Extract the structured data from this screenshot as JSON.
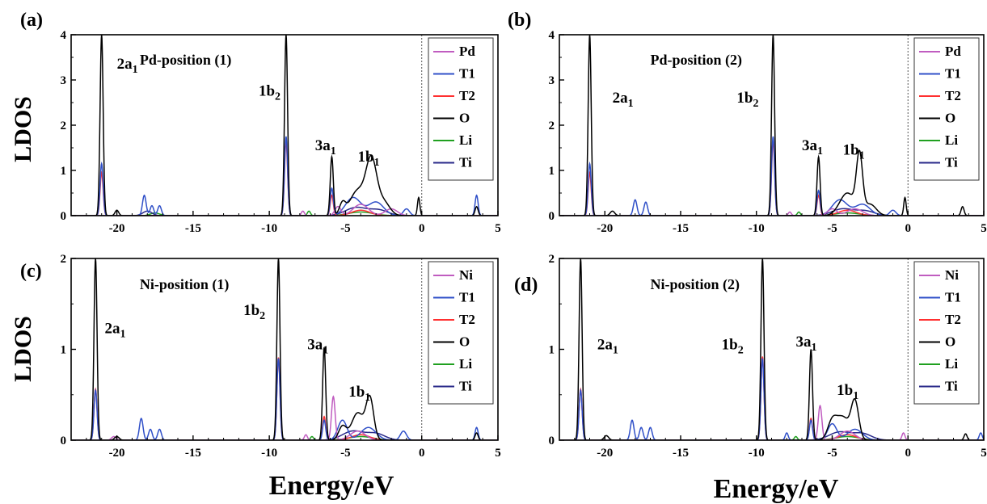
{
  "figure": {
    "ylabel": "LDOS",
    "xlabel": "Energy/eV"
  },
  "colors": {
    "Pd": "#c05cc0",
    "Ni": "#c05cc0",
    "T1": "#3050c8",
    "T2": "#ff3030",
    "O": "#000000",
    "Li": "#20a020",
    "Ti": "#2a2a8a"
  },
  "chart_data": [
    {
      "type": "line",
      "panel": "(a)",
      "title": "Pd-position (1)",
      "xlim": [
        -23,
        5
      ],
      "ylim": [
        0,
        4
      ],
      "xticks": [
        -20,
        -15,
        -10,
        -5,
        0,
        5
      ],
      "yticks": [
        0,
        1,
        2,
        3,
        4
      ],
      "fermi_level": 0,
      "legend": [
        "Pd",
        "T1",
        "T2",
        "O",
        "Li",
        "Ti"
      ],
      "peak_labels": [
        {
          "text": "2a",
          "sub": "1",
          "x": -20.0,
          "y": 3.25
        },
        {
          "text": "1b",
          "sub": "2",
          "x": -10.7,
          "y": 2.65
        },
        {
          "text": "3a",
          "sub": "1",
          "x": -7.0,
          "y": 1.45
        },
        {
          "text": "1b",
          "sub": "1",
          "x": -4.2,
          "y": 1.2
        }
      ],
      "series": [
        {
          "name": "O",
          "peaks": [
            [
              -21.0,
              4.0,
              0.1
            ],
            [
              -8.9,
              4.0,
              0.1
            ],
            [
              -5.9,
              1.3,
              0.1
            ],
            [
              -3.3,
              1.18,
              0.35
            ],
            [
              -4.2,
              0.55,
              0.5
            ],
            [
              -2.5,
              0.3,
              0.4
            ],
            [
              -5.2,
              0.25,
              0.2
            ],
            [
              -0.2,
              0.4,
              0.08
            ],
            [
              3.6,
              0.2,
              0.1
            ],
            [
              -20.0,
              0.12,
              0.12
            ]
          ]
        },
        {
          "name": "T1",
          "peaks": [
            [
              -21.0,
              1.15,
              0.1
            ],
            [
              -8.9,
              1.75,
              0.1
            ],
            [
              -5.9,
              0.6,
              0.1
            ],
            [
              -18.2,
              0.45,
              0.12
            ],
            [
              -17.7,
              0.22,
              0.12
            ],
            [
              -17.2,
              0.22,
              0.12
            ],
            [
              -4.5,
              0.4,
              0.5
            ],
            [
              -3.0,
              0.3,
              0.5
            ],
            [
              3.6,
              0.45,
              0.1
            ],
            [
              -1.0,
              0.15,
              0.2
            ]
          ]
        },
        {
          "name": "T2",
          "peaks": [
            [
              -21.0,
              0.95,
              0.1
            ],
            [
              -8.9,
              1.65,
              0.1
            ],
            [
              -5.9,
              0.45,
              0.1
            ],
            [
              -4.0,
              0.12,
              0.6
            ]
          ]
        },
        {
          "name": "Pd",
          "peaks": [
            [
              -7.8,
              0.1,
              0.1
            ],
            [
              -5.5,
              0.2,
              0.2
            ],
            [
              -4.0,
              0.25,
              0.5
            ],
            [
              -2.0,
              0.15,
              0.4
            ]
          ]
        },
        {
          "name": "Li",
          "peaks": [
            [
              -7.4,
              0.1,
              0.1
            ],
            [
              -17.5,
              0.06,
              0.3
            ],
            [
              -4.0,
              0.08,
              0.8
            ]
          ]
        },
        {
          "name": "Ti",
          "peaks": [
            [
              -4.3,
              0.18,
              0.7
            ],
            [
              -2.8,
              0.12,
              0.6
            ],
            [
              -18.0,
              0.1,
              0.3
            ]
          ]
        }
      ]
    },
    {
      "type": "line",
      "panel": "(b)",
      "title": "Pd-position (2)",
      "xlim": [
        -23,
        5
      ],
      "ylim": [
        0,
        4
      ],
      "xticks": [
        -20,
        -15,
        -10,
        -5,
        0,
        5
      ],
      "yticks": [
        0,
        1,
        2,
        3,
        4
      ],
      "fermi_level": 0,
      "legend": [
        "Pd",
        "T1",
        "T2",
        "O",
        "Li",
        "Ti"
      ],
      "peak_labels": [
        {
          "text": "2a",
          "sub": "1",
          "x": -19.5,
          "y": 2.5
        },
        {
          "text": "1b",
          "sub": "2",
          "x": -11.3,
          "y": 2.5
        },
        {
          "text": "3a",
          "sub": "1",
          "x": -7.0,
          "y": 1.45
        },
        {
          "text": "1b",
          "sub": "1",
          "x": -4.3,
          "y": 1.35
        }
      ],
      "series": [
        {
          "name": "O",
          "peaks": [
            [
              -21.0,
              4.0,
              0.1
            ],
            [
              -8.9,
              4.0,
              0.1
            ],
            [
              -5.9,
              1.3,
              0.1
            ],
            [
              -3.2,
              1.25,
              0.2
            ],
            [
              -4.0,
              0.5,
              0.5
            ],
            [
              -2.5,
              0.25,
              0.4
            ],
            [
              -0.2,
              0.4,
              0.08
            ],
            [
              3.6,
              0.2,
              0.1
            ],
            [
              -19.5,
              0.1,
              0.15
            ]
          ]
        },
        {
          "name": "T1",
          "peaks": [
            [
              -21.0,
              1.15,
              0.1
            ],
            [
              -8.9,
              1.75,
              0.1
            ],
            [
              -5.9,
              0.55,
              0.1
            ],
            [
              -18.0,
              0.35,
              0.12
            ],
            [
              -17.3,
              0.3,
              0.12
            ],
            [
              -4.5,
              0.35,
              0.5
            ],
            [
              -3.0,
              0.25,
              0.5
            ],
            [
              -1.0,
              0.12,
              0.2
            ]
          ]
        },
        {
          "name": "T2",
          "peaks": [
            [
              -21.0,
              0.95,
              0.1
            ],
            [
              -8.9,
              1.65,
              0.1
            ],
            [
              -5.9,
              0.45,
              0.1
            ],
            [
              -4.0,
              0.12,
              0.6
            ]
          ]
        },
        {
          "name": "Pd",
          "peaks": [
            [
              -7.8,
              0.08,
              0.1
            ],
            [
              -5.0,
              0.15,
              0.3
            ],
            [
              -3.5,
              0.15,
              0.5
            ]
          ]
        },
        {
          "name": "Li",
          "peaks": [
            [
              -7.2,
              0.08,
              0.1
            ],
            [
              -4.0,
              0.06,
              0.8
            ]
          ]
        },
        {
          "name": "Ti",
          "peaks": [
            [
              -4.3,
              0.15,
              0.7
            ],
            [
              -2.8,
              0.1,
              0.6
            ]
          ]
        }
      ]
    },
    {
      "type": "line",
      "panel": "(c)",
      "title": "Ni-position (1)",
      "xlim": [
        -23,
        5
      ],
      "ylim": [
        0,
        2
      ],
      "xticks": [
        -20,
        -15,
        -10,
        -5,
        0,
        5
      ],
      "yticks": [
        0,
        1,
        2
      ],
      "fermi_level": 0,
      "legend": [
        "Ni",
        "T1",
        "T2",
        "O",
        "Li",
        "Ti"
      ],
      "peak_labels": [
        {
          "text": "2a",
          "sub": "1",
          "x": -20.8,
          "y": 1.18
        },
        {
          "text": "1b",
          "sub": "2",
          "x": -11.7,
          "y": 1.38
        },
        {
          "text": "3a",
          "sub": "1",
          "x": -7.5,
          "y": 1.0
        },
        {
          "text": "1b",
          "sub": "1",
          "x": -4.8,
          "y": 0.48
        }
      ],
      "series": [
        {
          "name": "O",
          "peaks": [
            [
              -21.4,
              2.0,
              0.1
            ],
            [
              -9.4,
              2.0,
              0.1
            ],
            [
              -6.4,
              1.02,
              0.1
            ],
            [
              -3.4,
              0.45,
              0.25
            ],
            [
              -4.2,
              0.3,
              0.4
            ],
            [
              -5.2,
              0.15,
              0.25
            ],
            [
              3.6,
              0.08,
              0.1
            ],
            [
              -20.0,
              0.04,
              0.15
            ]
          ]
        },
        {
          "name": "T1",
          "peaks": [
            [
              -21.4,
              0.55,
              0.1
            ],
            [
              -9.4,
              0.9,
              0.1
            ],
            [
              -6.4,
              0.22,
              0.1
            ],
            [
              -18.4,
              0.24,
              0.12
            ],
            [
              -17.8,
              0.12,
              0.12
            ],
            [
              -17.2,
              0.12,
              0.12
            ],
            [
              -5.2,
              0.22,
              0.3
            ],
            [
              -3.5,
              0.14,
              0.5
            ],
            [
              3.6,
              0.14,
              0.1
            ],
            [
              -1.2,
              0.1,
              0.2
            ]
          ]
        },
        {
          "name": "T2",
          "peaks": [
            [
              -21.4,
              0.56,
              0.1
            ],
            [
              -9.4,
              0.91,
              0.1
            ],
            [
              -6.4,
              0.26,
              0.1
            ],
            [
              -4.0,
              0.06,
              0.6
            ]
          ]
        },
        {
          "name": "Ni",
          "peaks": [
            [
              -7.6,
              0.06,
              0.1
            ],
            [
              -5.8,
              0.48,
              0.12
            ],
            [
              -4.2,
              0.1,
              0.5
            ],
            [
              -20.2,
              0.04,
              0.15
            ]
          ]
        },
        {
          "name": "Li",
          "peaks": [
            [
              -7.2,
              0.04,
              0.1
            ],
            [
              -4.0,
              0.04,
              0.8
            ]
          ]
        },
        {
          "name": "Ti",
          "peaks": [
            [
              -4.5,
              0.1,
              0.7
            ],
            [
              -3.0,
              0.07,
              0.6
            ]
          ]
        }
      ]
    },
    {
      "type": "line",
      "panel": "(d)",
      "title": "Ni-position (2)",
      "xlim": [
        -23,
        5
      ],
      "ylim": [
        0,
        2
      ],
      "xticks": [
        -20,
        -15,
        -10,
        -5,
        0,
        5
      ],
      "yticks": [
        0,
        1,
        2
      ],
      "fermi_level": 0,
      "legend": [
        "Ni",
        "T1",
        "T2",
        "O",
        "Li",
        "Ti"
      ],
      "peak_labels": [
        {
          "text": "2a",
          "sub": "1",
          "x": -20.5,
          "y": 1.0
        },
        {
          "text": "1b",
          "sub": "2",
          "x": -12.3,
          "y": 1.0
        },
        {
          "text": "3a",
          "sub": "1",
          "x": -7.4,
          "y": 1.03
        },
        {
          "text": "1b",
          "sub": "1",
          "x": -4.7,
          "y": 0.5
        }
      ],
      "series": [
        {
          "name": "O",
          "peaks": [
            [
              -21.6,
              2.0,
              0.1
            ],
            [
              -9.6,
              2.0,
              0.1
            ],
            [
              -6.4,
              1.0,
              0.1
            ],
            [
              -3.5,
              0.42,
              0.25
            ],
            [
              -4.3,
              0.25,
              0.4
            ],
            [
              -5.0,
              0.2,
              0.3
            ],
            [
              3.8,
              0.07,
              0.1
            ],
            [
              -19.9,
              0.05,
              0.15
            ]
          ]
        },
        {
          "name": "T1",
          "peaks": [
            [
              -21.6,
              0.55,
              0.1
            ],
            [
              -9.6,
              0.9,
              0.1
            ],
            [
              -6.4,
              0.22,
              0.1
            ],
            [
              -18.2,
              0.22,
              0.12
            ],
            [
              -17.6,
              0.14,
              0.12
            ],
            [
              -17.0,
              0.14,
              0.12
            ],
            [
              -8.0,
              0.08,
              0.1
            ],
            [
              -5.0,
              0.18,
              0.3
            ],
            [
              -3.5,
              0.12,
              0.5
            ],
            [
              4.8,
              0.08,
              0.1
            ]
          ]
        },
        {
          "name": "T2",
          "peaks": [
            [
              -21.6,
              0.56,
              0.1
            ],
            [
              -9.6,
              0.92,
              0.1
            ],
            [
              -6.4,
              0.24,
              0.1
            ],
            [
              -4.0,
              0.06,
              0.6
            ]
          ]
        },
        {
          "name": "Ni",
          "peaks": [
            [
              -5.8,
              0.38,
              0.12
            ],
            [
              -4.0,
              0.1,
              0.5
            ],
            [
              -0.3,
              0.08,
              0.1
            ]
          ]
        },
        {
          "name": "Li",
          "peaks": [
            [
              -7.4,
              0.04,
              0.1
            ],
            [
              -4.0,
              0.04,
              0.8
            ]
          ]
        },
        {
          "name": "Ti",
          "peaks": [
            [
              -4.5,
              0.09,
              0.7
            ],
            [
              -3.0,
              0.07,
              0.6
            ]
          ]
        }
      ]
    }
  ]
}
